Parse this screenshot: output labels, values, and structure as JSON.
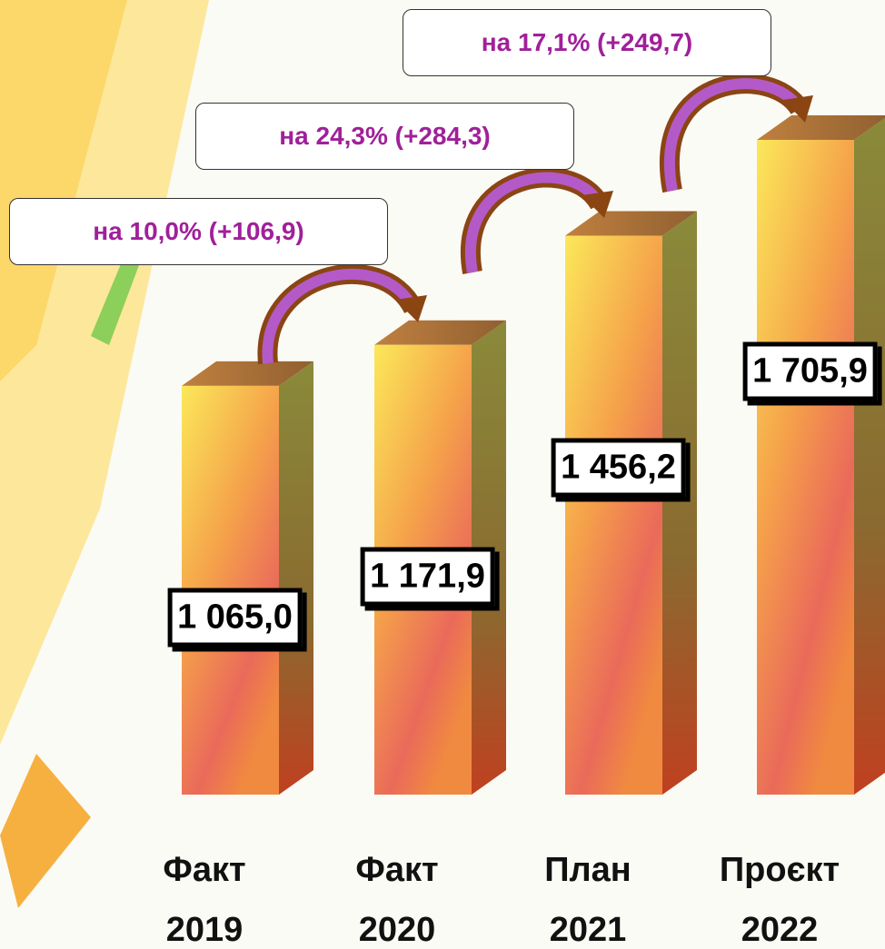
{
  "chart_data": {
    "type": "bar3d",
    "categories": [
      "Факт\n2019",
      "Факт\n2020",
      "План\n2021",
      "Проєкт\n2022"
    ],
    "values": [
      1065.0,
      1171.9,
      1456.2,
      1705.9
    ],
    "value_labels": [
      "1 065,0",
      "1 171,9",
      "1 456,2",
      "1 705,9"
    ],
    "annotations": [
      "на 10,0% (+106,9)",
      "на 24,3% (+284,3)",
      "на 17,1% (+249,7)"
    ]
  }
}
